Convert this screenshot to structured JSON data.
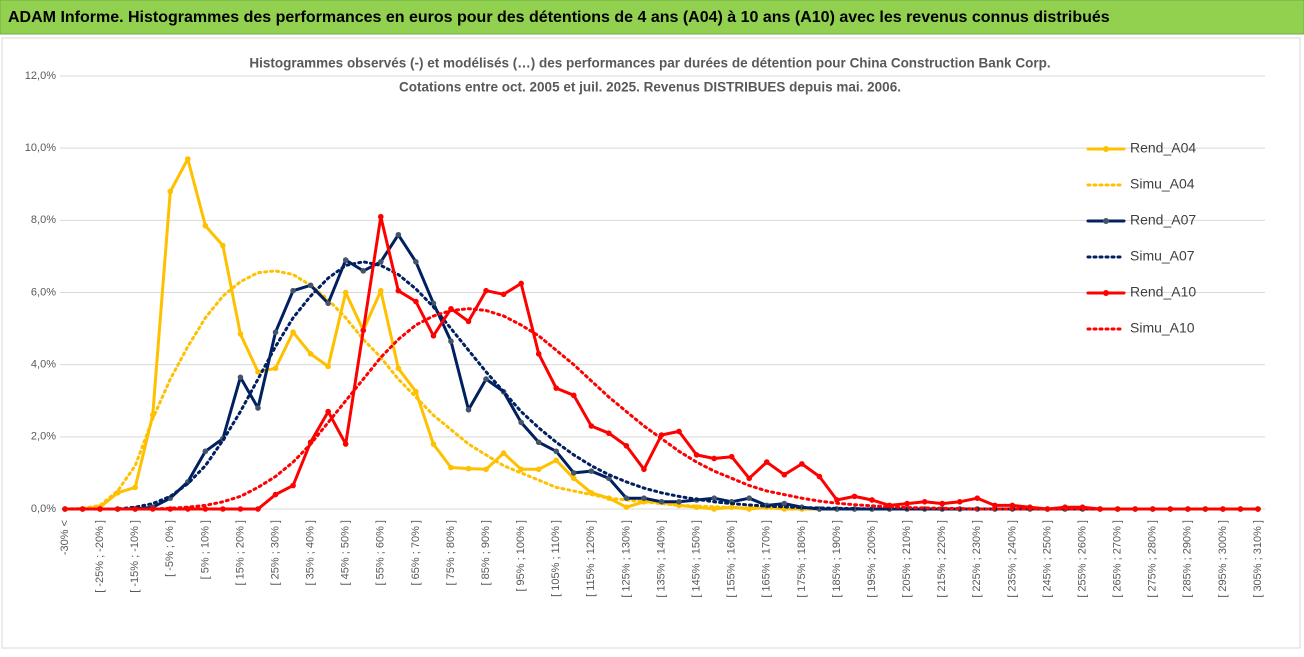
{
  "header": {
    "title": "ADAM Informe. Histogrammes des performances en euros pour des détentions de 4 ans (A04) à 10 ans (A10) avec les revenus connus distribués"
  },
  "chart_data": {
    "type": "line",
    "title": "Histogrammes observés (-) et modélisés (…) des performances par durées de détention pour China Construction Bank Corp.",
    "subtitle": "Cotations entre oct. 2005 et juil. 2025. Revenus DISTRIBUES depuis mai. 2006.",
    "categories": [
      "-30% <",
      null,
      "[ -25% ; -20% ]",
      null,
      "[ -15% ; -10% ]",
      null,
      "[ -5% ; 0% ]",
      null,
      "[ 5% ; 10% ]",
      null,
      "[ 15% ; 20% ]",
      null,
      "[ 25% ; 30% ]",
      null,
      "[ 35% ; 40% ]",
      null,
      "[ 45% ; 50% ]",
      null,
      "[ 55% ; 60% ]",
      null,
      "[ 65% ; 70% ]",
      null,
      "[ 75% ; 80% ]",
      null,
      "[ 85% ; 90% ]",
      null,
      "[ 95% ; 100% ]",
      null,
      "[ 105% ; 110% ]",
      null,
      "[ 115% ; 120% ]",
      null,
      "[ 125% ; 130% ]",
      null,
      "[ 135% ; 140% ]",
      null,
      "[ 145% ; 150% ]",
      null,
      "[ 155% ; 160% ]",
      null,
      "[ 165% ; 170% ]",
      null,
      "[ 175% ; 180% ]",
      null,
      "[ 185% ; 190% ]",
      null,
      "[ 195% ; 200% ]",
      null,
      "[ 205% ; 210% ]",
      null,
      "[ 215% ; 220% ]",
      null,
      "[ 225% ; 230% ]",
      null,
      "[ 235% ; 240% ]",
      null,
      "[ 245% ; 250% ]",
      null,
      "[ 255% ; 260% ]",
      null,
      "[ 265% ; 270% ]",
      null,
      "[ 275% ; 280% ]",
      null,
      "[ 285% ; 290% ]",
      null,
      "[ 295% ; 300% ]",
      null,
      "[ 305% ; 310% ]"
    ],
    "series": [
      {
        "name": "Rend_A04",
        "color": "#ffc000",
        "line_style": "solid",
        "markers": true,
        "values": [
          0,
          0,
          0.05,
          0.45,
          0.6,
          2.6,
          8.8,
          9.7,
          7.85,
          7.3,
          4.85,
          3.8,
          3.9,
          4.9,
          4.3,
          3.95,
          6,
          4.95,
          6.05,
          3.9,
          3.25,
          1.8,
          1.15,
          1.12,
          1.1,
          1.55,
          1.1,
          1.1,
          1.35,
          0.85,
          0.45,
          0.3,
          0.05,
          0.2,
          0.2,
          0.1,
          0.05,
          0,
          0.05,
          0,
          0.05,
          0,
          0,
          0,
          0,
          0,
          0,
          0,
          0,
          0,
          0,
          0,
          0,
          0,
          0,
          0,
          0,
          0,
          0,
          0,
          0,
          0,
          0,
          0,
          0,
          0,
          0,
          0,
          0
        ]
      },
      {
        "name": "Simu_A04",
        "color": "#ffc000",
        "line_style": "dotted",
        "markers": false,
        "values": [
          0,
          0.02,
          0.1,
          0.5,
          1.2,
          2.5,
          3.6,
          4.5,
          5.3,
          5.9,
          6.3,
          6.55,
          6.6,
          6.5,
          6.2,
          5.8,
          5.3,
          4.7,
          4.2,
          3.6,
          3.1,
          2.6,
          2.2,
          1.8,
          1.5,
          1.2,
          1,
          0.8,
          0.6,
          0.5,
          0.4,
          0.3,
          0.25,
          0.2,
          0.15,
          0.1,
          0.08,
          0.06,
          0.04,
          0.03,
          0.02,
          0.01,
          0,
          0,
          0,
          0,
          0,
          0,
          0,
          0,
          0,
          0,
          0,
          0,
          0,
          0,
          0,
          0,
          0,
          0,
          0,
          0,
          0,
          0,
          0,
          0,
          0,
          0,
          0
        ]
      },
      {
        "name": "Rend_A07",
        "color": "#002060",
        "marker_color": "#44546a",
        "line_style": "solid",
        "markers": true,
        "values": [
          0,
          0,
          0,
          0,
          0,
          0.05,
          0.3,
          0.75,
          1.6,
          1.95,
          3.65,
          2.8,
          4.9,
          6.05,
          6.2,
          5.7,
          6.9,
          6.6,
          6.85,
          7.6,
          6.85,
          5.7,
          4.65,
          2.75,
          3.6,
          3.25,
          2.4,
          1.85,
          1.6,
          1,
          1.05,
          0.85,
          0.3,
          0.3,
          0.2,
          0.2,
          0.25,
          0.3,
          0.2,
          0.3,
          0.1,
          0.15,
          0.05,
          0,
          0,
          0,
          0,
          0,
          0,
          0,
          0,
          0,
          0,
          0,
          0,
          0,
          0,
          0,
          0,
          0,
          0,
          0,
          0,
          0,
          0,
          0,
          0,
          0,
          0
        ]
      },
      {
        "name": "Simu_A07",
        "color": "#002060",
        "line_style": "dotted",
        "markers": false,
        "values": [
          0,
          0,
          0,
          0,
          0.05,
          0.15,
          0.35,
          0.7,
          1.2,
          1.9,
          2.7,
          3.6,
          4.5,
          5.3,
          5.9,
          6.4,
          6.75,
          6.85,
          6.75,
          6.5,
          6.1,
          5.6,
          5,
          4.4,
          3.8,
          3.25,
          2.7,
          2.25,
          1.85,
          1.5,
          1.2,
          0.95,
          0.75,
          0.58,
          0.45,
          0.35,
          0.27,
          0.2,
          0.15,
          0.11,
          0.08,
          0.06,
          0.04,
          0.03,
          0.02,
          0.01,
          0,
          0,
          0,
          0,
          0,
          0,
          0,
          0,
          0,
          0,
          0,
          0,
          0,
          0,
          0,
          0,
          0,
          0,
          0,
          0,
          0,
          0,
          0
        ]
      },
      {
        "name": "Rend_A10",
        "color": "#ff0000",
        "line_style": "solid",
        "markers": true,
        "values": [
          0,
          0,
          0,
          0,
          0,
          0,
          0,
          0,
          0,
          0,
          0,
          0,
          0.4,
          0.65,
          1.85,
          2.7,
          1.8,
          4.95,
          8.1,
          6.05,
          5.75,
          4.8,
          5.55,
          5.2,
          6.05,
          5.95,
          6.25,
          4.3,
          3.35,
          3.15,
          2.3,
          2.1,
          1.75,
          1.1,
          2.05,
          2.15,
          1.5,
          1.4,
          1.45,
          0.85,
          1.3,
          0.95,
          1.25,
          0.9,
          0.25,
          0.35,
          0.25,
          0.1,
          0.15,
          0.2,
          0.15,
          0.2,
          0.3,
          0.1,
          0.1,
          0.05,
          0,
          0.05,
          0.05,
          0,
          0,
          0,
          0,
          0,
          0,
          0,
          0,
          0,
          0
        ]
      },
      {
        "name": "Simu_A10",
        "color": "#ff0000",
        "line_style": "dotted",
        "markers": false,
        "values": [
          0,
          0,
          0,
          0,
          0,
          0,
          0.02,
          0.05,
          0.1,
          0.2,
          0.35,
          0.6,
          0.9,
          1.3,
          1.8,
          2.4,
          3,
          3.6,
          4.2,
          4.7,
          5.1,
          5.35,
          5.5,
          5.55,
          5.5,
          5.35,
          5.1,
          4.8,
          4.4,
          4,
          3.55,
          3.1,
          2.7,
          2.3,
          1.95,
          1.6,
          1.3,
          1.05,
          0.85,
          0.65,
          0.5,
          0.4,
          0.3,
          0.22,
          0.16,
          0.12,
          0.09,
          0.06,
          0.04,
          0.03,
          0.02,
          0.01,
          0,
          0,
          0,
          0,
          0,
          0,
          0,
          0,
          0,
          0,
          0,
          0,
          0,
          0,
          0,
          0,
          0
        ]
      }
    ],
    "ylim": [
      0,
      12
    ],
    "yticks": [
      {
        "value": 0,
        "label": "0,0%"
      },
      {
        "value": 2,
        "label": "2,0%"
      },
      {
        "value": 4,
        "label": "4,0%"
      },
      {
        "value": 6,
        "label": "6,0%"
      },
      {
        "value": 8,
        "label": "8,0%"
      },
      {
        "value": 10,
        "label": "10,0%"
      },
      {
        "value": 12,
        "label": "12,0%"
      }
    ],
    "grid": true,
    "legend": "right"
  }
}
